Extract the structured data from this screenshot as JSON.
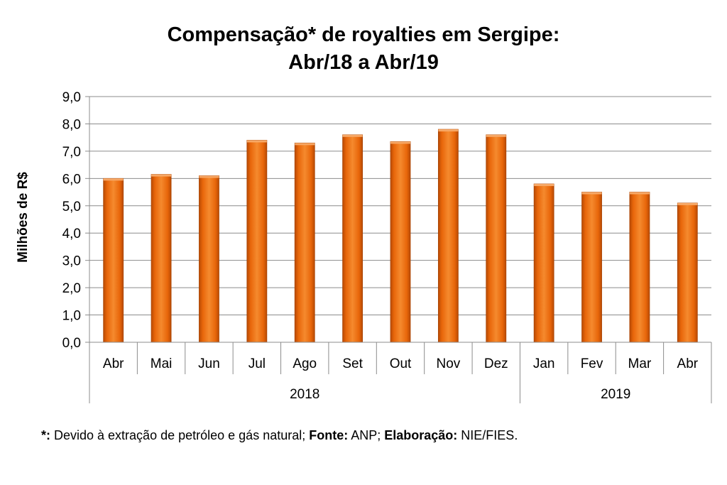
{
  "chart_data": {
    "type": "bar",
    "title_line1": "Compensação* de royalties em Sergipe:",
    "title_line2": "Abr/18 a Abr/19",
    "ylabel": "Milhões de R$",
    "xlabel": "",
    "ylim": [
      0,
      9
    ],
    "yticks": [
      "0,0",
      "1,0",
      "2,0",
      "3,0",
      "4,0",
      "5,0",
      "6,0",
      "7,0",
      "8,0",
      "9,0"
    ],
    "grid": true,
    "categories": [
      "Abr",
      "Mai",
      "Jun",
      "Jul",
      "Ago",
      "Set",
      "Out",
      "Nov",
      "Dez",
      "Jan",
      "Fev",
      "Mar",
      "Abr"
    ],
    "groups": [
      {
        "label": "2018",
        "count": 9
      },
      {
        "label": "2019",
        "count": 4
      }
    ],
    "values": [
      6.0,
      6.15,
      6.1,
      7.4,
      7.3,
      7.6,
      7.35,
      7.8,
      7.6,
      5.8,
      5.5,
      5.5,
      5.1
    ],
    "bar_color": "#E8660A"
  },
  "footnote": {
    "star_label": "*:",
    "star_text": " Devido à extração de petróleo e gás natural; ",
    "source_label": "Fonte:",
    "source_text": " ANP; ",
    "author_label": "Elaboração:",
    "author_text": " NIE/FIES."
  }
}
